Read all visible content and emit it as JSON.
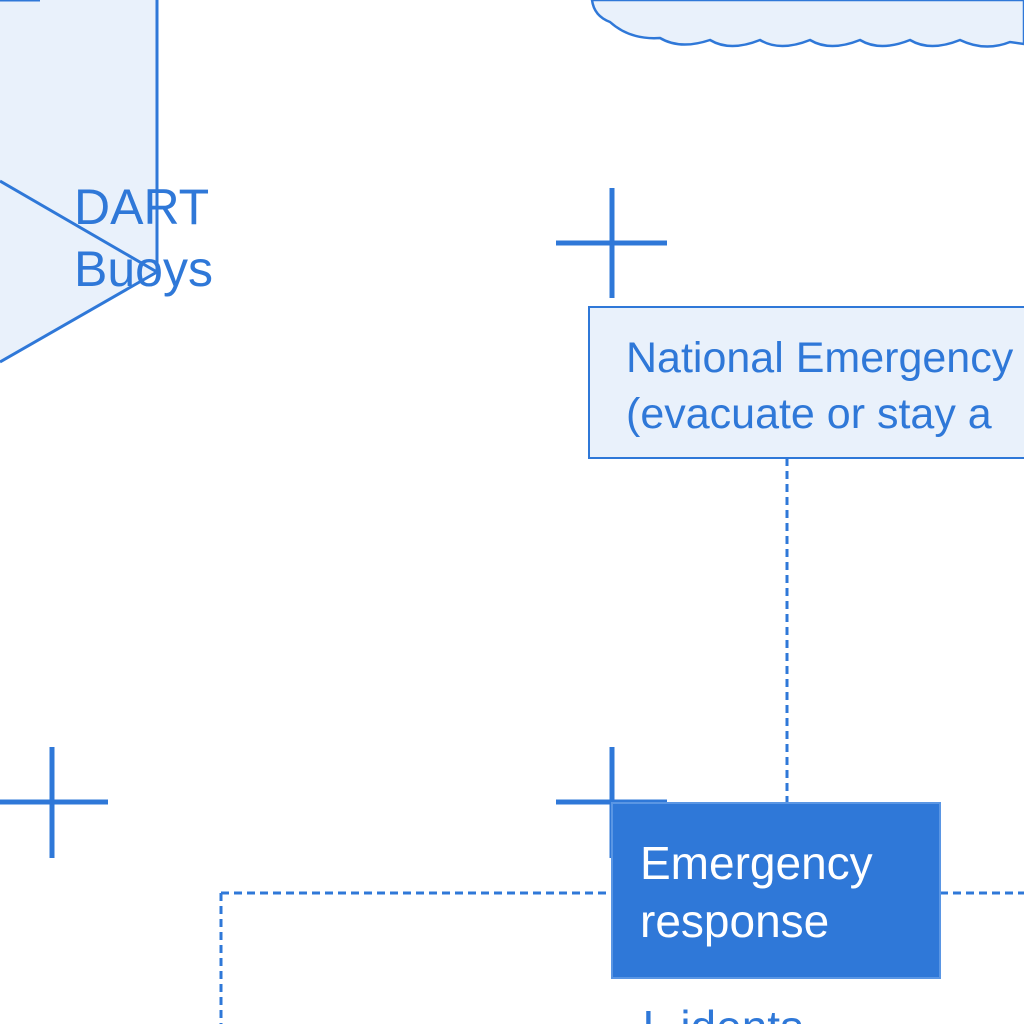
{
  "colors": {
    "stroke": "#2f78d8",
    "fill_light": "#e9f1fb",
    "fill_dark": "#2f78d8",
    "text_blue": "#2f78d8",
    "text_white": "#ffffff"
  },
  "nodes": {
    "dart_buoys": {
      "shape": "hexagon",
      "label": "DART\nBuoys"
    },
    "national_emergency": {
      "shape": "rectangle",
      "label": "National Emergency\n(evacuate or stay a"
    },
    "emergency_response": {
      "shape": "rectangle",
      "label": "Emergency\nresponse"
    },
    "partial_label": {
      "label": "I  idents"
    },
    "cloud": {
      "shape": "cloud"
    }
  },
  "edges": [
    {
      "from": "national_emergency",
      "to": "emergency_response",
      "style": "dashed"
    }
  ],
  "decorations": {
    "crosshair_icons": 3
  }
}
